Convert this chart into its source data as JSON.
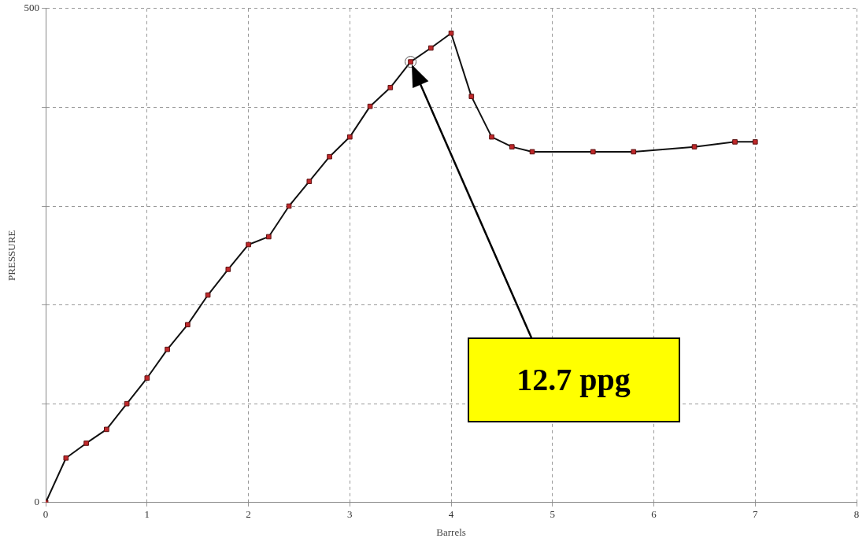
{
  "chart_data": {
    "type": "line",
    "xlabel": "Barrels",
    "ylabel": "PRESSURE",
    "x": [
      0,
      0.2,
      0.4,
      0.6,
      0.8,
      1.0,
      1.2,
      1.4,
      1.6,
      1.8,
      2.0,
      2.2,
      2.4,
      2.6,
      2.8,
      3.0,
      3.2,
      3.4,
      3.6,
      3.8,
      4.0,
      4.2,
      4.4,
      4.6,
      4.8,
      5.4,
      5.8,
      6.4,
      6.8,
      7.0
    ],
    "series": [
      {
        "color": "#c0282a",
        "values": [
          0,
          45,
          60,
          74,
          100,
          126,
          155,
          180,
          210,
          236,
          261,
          269,
          300,
          325,
          350,
          370,
          401,
          420,
          446,
          460,
          475,
          411,
          370,
          360,
          355,
          355,
          355,
          360,
          365,
          365
        ]
      }
    ],
    "xlim": [
      0,
      8
    ],
    "xticks": [
      0,
      1,
      2,
      3,
      4,
      5,
      6,
      7,
      8
    ],
    "ylim": [
      0,
      500
    ],
    "yticks": [
      0,
      {
        "value": 100,
        "label": null
      },
      {
        "value": 200,
        "label": null
      },
      {
        "value": 300,
        "label": null
      },
      {
        "value": 400,
        "label": null
      },
      500
    ],
    "grid": true,
    "marker": "square",
    "line_style": "solid",
    "legend": false,
    "annotations": [
      "12.7 ppg"
    ]
  }
}
